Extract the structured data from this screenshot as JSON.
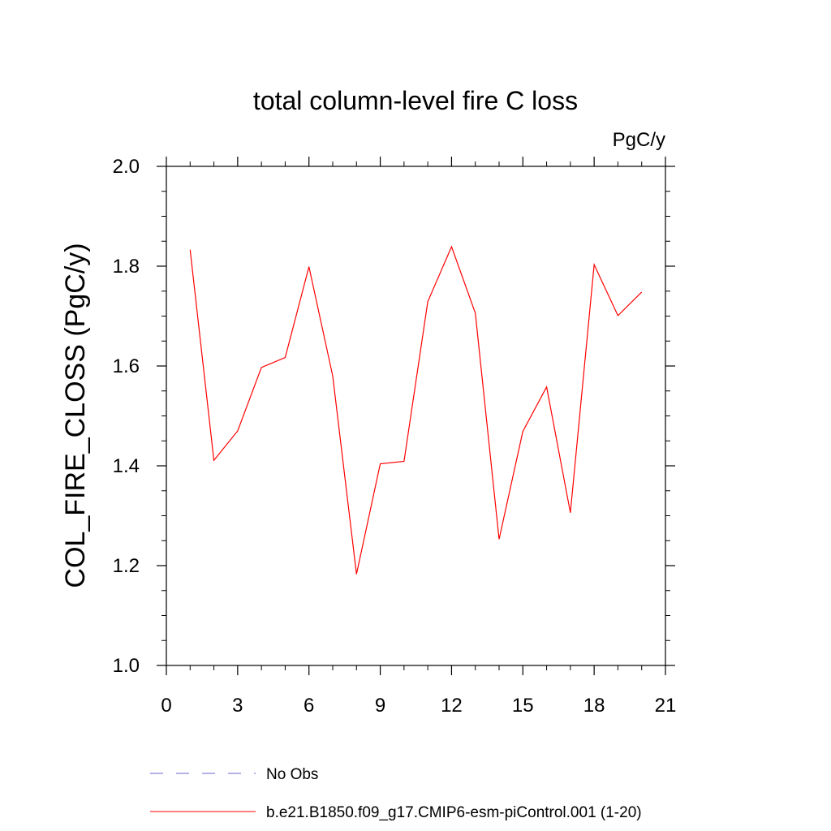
{
  "chart_data": {
    "type": "line",
    "title": "total column-level fire C loss",
    "units": "PgC/y",
    "xlabel": "",
    "ylabel": "COL_FIRE_CLOSS  (PgC/y)",
    "xlim": [
      0,
      21
    ],
    "ylim": [
      1.0,
      2.0
    ],
    "x_ticks": [
      "0",
      "3",
      "6",
      "9",
      "12",
      "15",
      "18",
      "21"
    ],
    "y_ticks": [
      "1.0",
      "1.2",
      "1.4",
      "1.6",
      "1.8",
      "2.0"
    ],
    "x": [
      1,
      2,
      3,
      4,
      5,
      6,
      7,
      8,
      9,
      10,
      11,
      12,
      13,
      14,
      15,
      16,
      17,
      18,
      19,
      20
    ],
    "series": [
      {
        "name": "b.e21.B1850.f09_g17.CMIP6-esm-piControl.001 (1-20)",
        "color": "#ff0000",
        "style": "solid",
        "values": [
          1.833,
          1.411,
          1.47,
          1.597,
          1.617,
          1.799,
          1.58,
          1.183,
          1.404,
          1.409,
          1.729,
          1.839,
          1.706,
          1.253,
          1.469,
          1.558,
          1.306,
          1.803,
          1.701,
          1.748
        ]
      }
    ],
    "legend": [
      {
        "label": "No Obs",
        "color": "#6666cc",
        "style": "dashed"
      },
      {
        "label": "b.e21.B1850.f09_g17.CMIP6-esm-piControl.001 (1-20)",
        "color": "#ff0000",
        "style": "solid"
      }
    ],
    "legend_position": "bottom",
    "grid": false
  }
}
